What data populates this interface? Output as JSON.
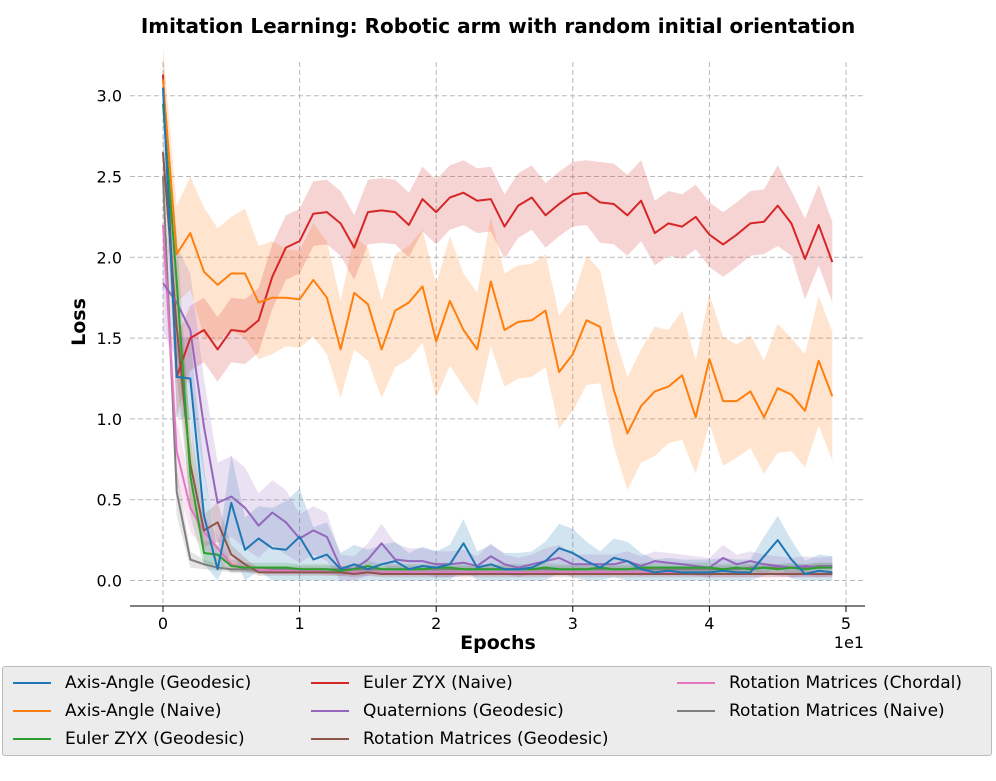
{
  "chart_data": {
    "type": "line",
    "title": "Imitation Learning: Robotic arm with random initial orientation",
    "xlabel": "Epochs",
    "ylabel": "Loss",
    "x_offset_label": "1e1",
    "xlim": [
      -0.25,
      5.0
    ],
    "ylim": [
      -0.15,
      3.3
    ],
    "xticks": [
      0,
      1,
      2,
      3,
      4,
      5
    ],
    "xtick_labels": [
      "0",
      "1",
      "2",
      "3",
      "4",
      "5"
    ],
    "yticks": [
      0.0,
      0.5,
      1.0,
      1.5,
      2.0,
      2.5,
      3.0
    ],
    "ytick_labels": [
      "0.0",
      "0.5",
      "1.0",
      "1.5",
      "2.0",
      "2.5",
      "3.0"
    ],
    "grid": true,
    "x": [
      0,
      0.1,
      0.2,
      0.3,
      0.4,
      0.5,
      0.6,
      0.7,
      0.8,
      0.9,
      1.0,
      1.1,
      1.2,
      1.3,
      1.4,
      1.5,
      1.6,
      1.7,
      1.8,
      1.9,
      2.0,
      2.1,
      2.2,
      2.3,
      2.4,
      2.5,
      2.6,
      2.7,
      2.8,
      2.9,
      3.0,
      3.1,
      3.2,
      3.3,
      3.4,
      3.5,
      3.6,
      3.7,
      3.8,
      3.9,
      4.0,
      4.1,
      4.2,
      4.3,
      4.4,
      4.5,
      4.6,
      4.7,
      4.8,
      4.9
    ],
    "series": [
      {
        "name": "Axis-Angle (Geodesic)",
        "color": "#1f77b4",
        "values": [
          3.05,
          1.26,
          1.25,
          0.4,
          0.07,
          0.48,
          0.19,
          0.26,
          0.2,
          0.19,
          0.27,
          0.13,
          0.16,
          0.07,
          0.1,
          0.07,
          0.1,
          0.12,
          0.07,
          0.09,
          0.08,
          0.1,
          0.23,
          0.08,
          0.1,
          0.07,
          0.07,
          0.08,
          0.12,
          0.2,
          0.17,
          0.12,
          0.08,
          0.14,
          0.12,
          0.07,
          0.05,
          0.06,
          0.05,
          0.05,
          0.05,
          0.06,
          0.05,
          0.05,
          0.15,
          0.25,
          0.13,
          0.04,
          0.06,
          0.05
        ],
        "band": [
          0.1,
          0.25,
          0.25,
          0.3,
          0.1,
          0.3,
          0.2,
          0.2,
          0.25,
          0.3,
          0.3,
          0.2,
          0.2,
          0.1,
          0.12,
          0.12,
          0.12,
          0.12,
          0.1,
          0.12,
          0.1,
          0.12,
          0.15,
          0.1,
          0.12,
          0.1,
          0.1,
          0.1,
          0.12,
          0.15,
          0.15,
          0.12,
          0.1,
          0.12,
          0.12,
          0.1,
          0.08,
          0.08,
          0.08,
          0.08,
          0.08,
          0.08,
          0.08,
          0.08,
          0.12,
          0.15,
          0.12,
          0.08,
          0.1,
          0.1
        ]
      },
      {
        "name": "Axis-Angle (Naive)",
        "color": "#ff7f0e",
        "values": [
          3.1,
          2.02,
          2.15,
          1.91,
          1.83,
          1.9,
          1.9,
          1.72,
          1.75,
          1.75,
          1.74,
          1.86,
          1.75,
          1.43,
          1.78,
          1.71,
          1.43,
          1.67,
          1.72,
          1.82,
          1.48,
          1.73,
          1.55,
          1.43,
          1.85,
          1.55,
          1.6,
          1.61,
          1.67,
          1.29,
          1.4,
          1.61,
          1.57,
          1.18,
          0.91,
          1.08,
          1.17,
          1.2,
          1.27,
          1.01,
          1.37,
          1.11,
          1.11,
          1.17,
          1.01,
          1.19,
          1.15,
          1.05,
          1.36,
          1.14
        ],
        "band": [
          0.2,
          0.3,
          0.35,
          0.4,
          0.35,
          0.35,
          0.4,
          0.35,
          0.35,
          0.3,
          0.3,
          0.35,
          0.35,
          0.3,
          0.35,
          0.35,
          0.3,
          0.35,
          0.35,
          0.35,
          0.35,
          0.4,
          0.35,
          0.35,
          0.4,
          0.35,
          0.35,
          0.35,
          0.35,
          0.35,
          0.35,
          0.4,
          0.35,
          0.35,
          0.35,
          0.35,
          0.4,
          0.35,
          0.4,
          0.35,
          0.4,
          0.4,
          0.35,
          0.35,
          0.35,
          0.4,
          0.35,
          0.35,
          0.4,
          0.4
        ]
      },
      {
        "name": "Euler ZYX (Geodesic)",
        "color": "#2ca02c",
        "values": [
          2.95,
          1.85,
          0.65,
          0.17,
          0.16,
          0.09,
          0.08,
          0.08,
          0.08,
          0.08,
          0.07,
          0.07,
          0.07,
          0.06,
          0.07,
          0.09,
          0.07,
          0.07,
          0.07,
          0.07,
          0.08,
          0.08,
          0.07,
          0.07,
          0.07,
          0.07,
          0.07,
          0.07,
          0.08,
          0.07,
          0.07,
          0.07,
          0.08,
          0.07,
          0.07,
          0.08,
          0.08,
          0.08,
          0.08,
          0.08,
          0.08,
          0.07,
          0.08,
          0.07,
          0.08,
          0.07,
          0.08,
          0.07,
          0.08,
          0.08
        ],
        "band": [
          0.1,
          0.3,
          0.25,
          0.08,
          0.06,
          0.04,
          0.03,
          0.03,
          0.03,
          0.03,
          0.03,
          0.03,
          0.03,
          0.03,
          0.03,
          0.03,
          0.03,
          0.03,
          0.03,
          0.03,
          0.03,
          0.03,
          0.03,
          0.03,
          0.03,
          0.03,
          0.03,
          0.03,
          0.03,
          0.03,
          0.03,
          0.03,
          0.03,
          0.03,
          0.03,
          0.03,
          0.03,
          0.03,
          0.03,
          0.03,
          0.03,
          0.03,
          0.03,
          0.03,
          0.03,
          0.03,
          0.03,
          0.03,
          0.03,
          0.03
        ]
      },
      {
        "name": "Euler ZYX (Naive)",
        "color": "#d62728",
        "values": [
          3.13,
          1.26,
          1.5,
          1.55,
          1.43,
          1.55,
          1.54,
          1.61,
          1.88,
          2.06,
          2.1,
          2.27,
          2.28,
          2.21,
          2.06,
          2.28,
          2.29,
          2.28,
          2.2,
          2.36,
          2.28,
          2.37,
          2.4,
          2.35,
          2.36,
          2.19,
          2.32,
          2.37,
          2.26,
          2.33,
          2.39,
          2.4,
          2.34,
          2.33,
          2.26,
          2.35,
          2.15,
          2.21,
          2.19,
          2.25,
          2.14,
          2.08,
          2.14,
          2.21,
          2.22,
          2.32,
          2.21,
          1.99,
          2.2,
          1.97
        ],
        "band": [
          0.1,
          0.25,
          0.2,
          0.2,
          0.2,
          0.2,
          0.2,
          0.2,
          0.2,
          0.2,
          0.2,
          0.2,
          0.2,
          0.2,
          0.2,
          0.2,
          0.2,
          0.2,
          0.2,
          0.2,
          0.2,
          0.2,
          0.2,
          0.2,
          0.2,
          0.2,
          0.2,
          0.2,
          0.2,
          0.2,
          0.2,
          0.2,
          0.25,
          0.25,
          0.25,
          0.25,
          0.2,
          0.2,
          0.2,
          0.2,
          0.2,
          0.2,
          0.2,
          0.2,
          0.2,
          0.25,
          0.2,
          0.25,
          0.25,
          0.25
        ]
      },
      {
        "name": "Quaternions (Geodesic)",
        "color": "#9467bd",
        "values": [
          1.84,
          1.72,
          1.55,
          0.95,
          0.48,
          0.52,
          0.45,
          0.34,
          0.42,
          0.36,
          0.26,
          0.31,
          0.27,
          0.08,
          0.07,
          0.13,
          0.23,
          0.13,
          0.12,
          0.12,
          0.1,
          0.1,
          0.11,
          0.09,
          0.15,
          0.1,
          0.08,
          0.1,
          0.12,
          0.14,
          0.1,
          0.1,
          0.1,
          0.1,
          0.12,
          0.09,
          0.12,
          0.11,
          0.1,
          0.09,
          0.08,
          0.14,
          0.1,
          0.12,
          0.1,
          0.09,
          0.08,
          0.09,
          0.08,
          0.09
        ],
        "band": [
          0.3,
          0.35,
          0.35,
          0.3,
          0.25,
          0.25,
          0.25,
          0.2,
          0.2,
          0.2,
          0.15,
          0.15,
          0.15,
          0.08,
          0.08,
          0.1,
          0.12,
          0.1,
          0.08,
          0.08,
          0.08,
          0.08,
          0.08,
          0.06,
          0.08,
          0.06,
          0.06,
          0.06,
          0.08,
          0.08,
          0.06,
          0.06,
          0.06,
          0.06,
          0.06,
          0.06,
          0.06,
          0.06,
          0.06,
          0.06,
          0.06,
          0.08,
          0.06,
          0.06,
          0.06,
          0.06,
          0.06,
          0.06,
          0.06,
          0.06
        ]
      },
      {
        "name": "Rotation Matrices (Geodesic)",
        "color": "#8c564b",
        "values": [
          2.65,
          1.57,
          0.72,
          0.31,
          0.36,
          0.16,
          0.1,
          0.05,
          0.05,
          0.05,
          0.05,
          0.05,
          0.05,
          0.05,
          0.04,
          0.05,
          0.04,
          0.04,
          0.04,
          0.04,
          0.04,
          0.04,
          0.04,
          0.04,
          0.04,
          0.04,
          0.04,
          0.04,
          0.04,
          0.04,
          0.04,
          0.04,
          0.04,
          0.04,
          0.04,
          0.04,
          0.04,
          0.04,
          0.04,
          0.04,
          0.04,
          0.04,
          0.04,
          0.04,
          0.04,
          0.04,
          0.04,
          0.04,
          0.04,
          0.04
        ],
        "band": [
          0.15,
          0.3,
          0.25,
          0.1,
          0.12,
          0.06,
          0.04,
          0.02,
          0.02,
          0.02,
          0.02,
          0.02,
          0.02,
          0.02,
          0.02,
          0.02,
          0.02,
          0.02,
          0.02,
          0.02,
          0.02,
          0.02,
          0.02,
          0.02,
          0.02,
          0.02,
          0.02,
          0.02,
          0.02,
          0.02,
          0.02,
          0.02,
          0.02,
          0.02,
          0.02,
          0.02,
          0.02,
          0.02,
          0.02,
          0.02,
          0.02,
          0.02,
          0.02,
          0.02,
          0.02,
          0.02,
          0.02,
          0.02,
          0.02,
          0.02
        ]
      },
      {
        "name": "Rotation Matrices (Chordal)",
        "color": "#e377c2",
        "values": [
          2.2,
          0.8,
          0.45,
          0.3,
          0.2,
          0.1,
          0.08,
          0.07,
          0.06,
          0.06,
          0.06,
          0.06,
          0.05,
          0.05,
          0.05,
          0.05,
          0.05,
          0.05,
          0.05,
          0.05,
          0.05,
          0.05,
          0.05,
          0.05,
          0.05,
          0.05,
          0.05,
          0.05,
          0.05,
          0.05,
          0.05,
          0.05,
          0.05,
          0.05,
          0.05,
          0.05,
          0.05,
          0.05,
          0.05,
          0.05,
          0.04,
          0.04,
          0.04,
          0.04,
          0.04,
          0.04,
          0.04,
          0.04,
          0.04,
          0.04
        ],
        "band": [
          0.2,
          0.2,
          0.15,
          0.1,
          0.08,
          0.05,
          0.03,
          0.02,
          0.02,
          0.02,
          0.02,
          0.02,
          0.02,
          0.02,
          0.02,
          0.02,
          0.02,
          0.02,
          0.02,
          0.02,
          0.02,
          0.02,
          0.02,
          0.02,
          0.02,
          0.02,
          0.02,
          0.02,
          0.02,
          0.02,
          0.02,
          0.02,
          0.02,
          0.02,
          0.02,
          0.02,
          0.02,
          0.02,
          0.02,
          0.02,
          0.02,
          0.02,
          0.02,
          0.02,
          0.02,
          0.02,
          0.02,
          0.02,
          0.02,
          0.02
        ]
      },
      {
        "name": "Rotation Matrices (Naive)",
        "color": "#7f7f7f",
        "values": [
          2.5,
          0.55,
          0.13,
          0.1,
          0.08,
          0.07,
          0.07,
          0.07,
          0.07,
          0.07,
          0.07,
          0.07,
          0.07,
          0.07,
          0.07,
          0.07,
          0.07,
          0.07,
          0.07,
          0.07,
          0.07,
          0.07,
          0.07,
          0.07,
          0.07,
          0.07,
          0.07,
          0.07,
          0.07,
          0.07,
          0.07,
          0.07,
          0.07,
          0.07,
          0.07,
          0.07,
          0.07,
          0.07,
          0.07,
          0.07,
          0.07,
          0.07,
          0.07,
          0.08,
          0.08,
          0.08,
          0.08,
          0.08,
          0.09,
          0.09
        ],
        "band": [
          0.15,
          0.15,
          0.05,
          0.03,
          0.02,
          0.02,
          0.02,
          0.02,
          0.02,
          0.02,
          0.02,
          0.02,
          0.02,
          0.02,
          0.02,
          0.02,
          0.02,
          0.02,
          0.02,
          0.02,
          0.02,
          0.02,
          0.02,
          0.02,
          0.02,
          0.02,
          0.02,
          0.02,
          0.02,
          0.02,
          0.02,
          0.02,
          0.02,
          0.02,
          0.02,
          0.02,
          0.02,
          0.02,
          0.02,
          0.02,
          0.02,
          0.02,
          0.02,
          0.02,
          0.02,
          0.02,
          0.02,
          0.02,
          0.02,
          0.02
        ]
      }
    ]
  }
}
